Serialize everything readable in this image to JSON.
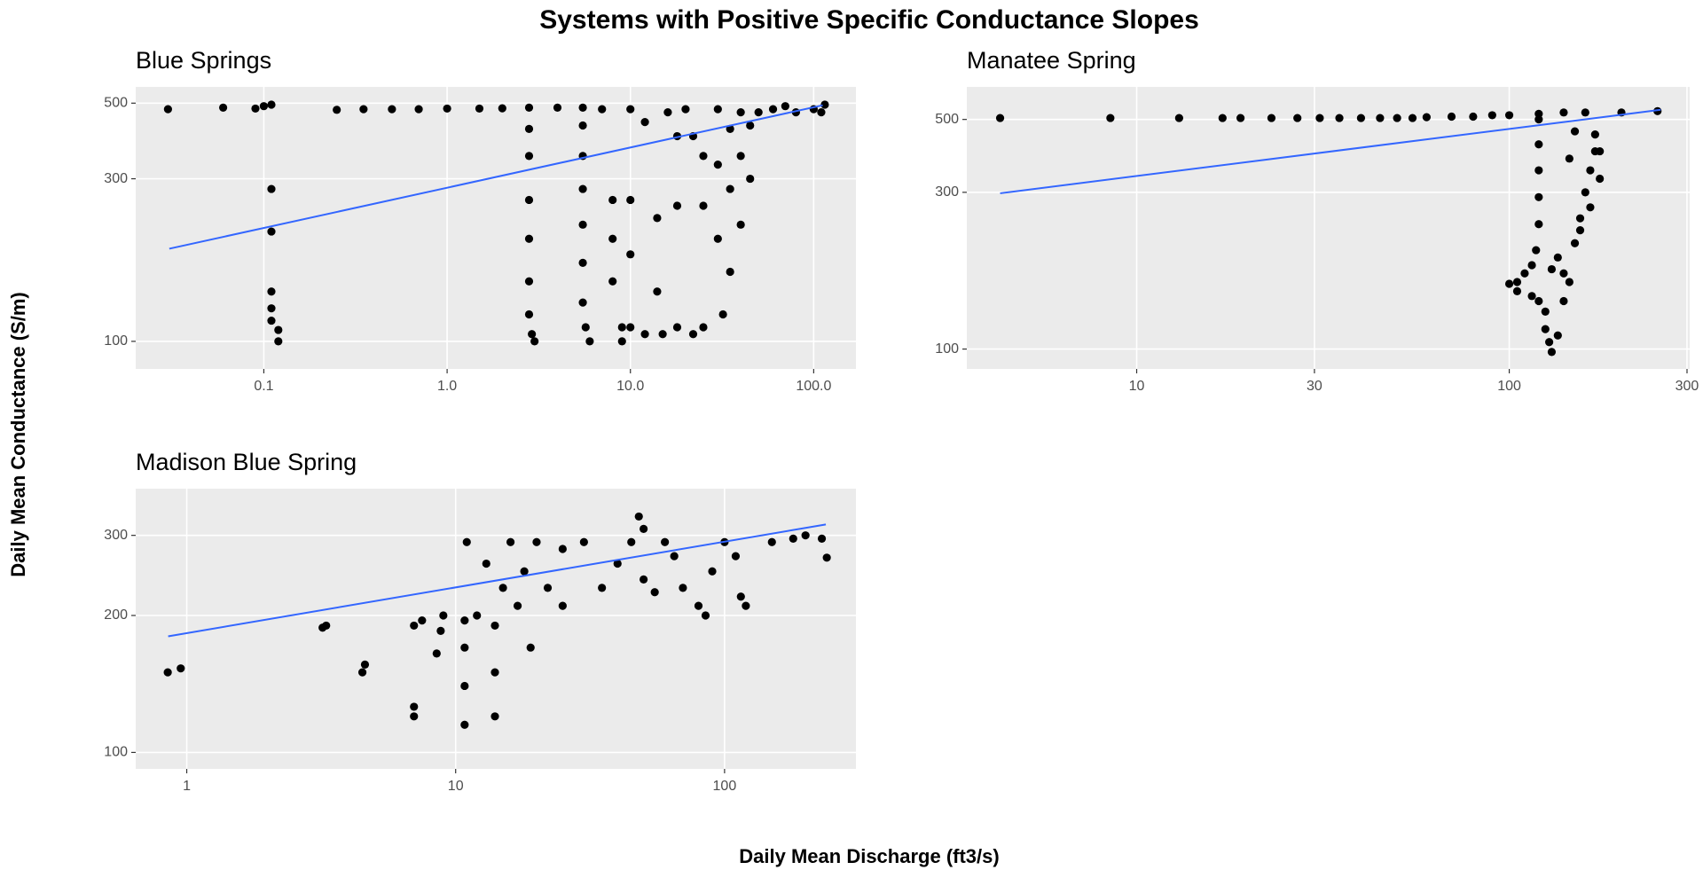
{
  "title": "Systems with Positive Specific Conductance Slopes",
  "x_label": "Daily Mean Discharge (ft3/s)",
  "y_label": "Daily Mean Conductance (S/m)",
  "chart_data": [
    {
      "type": "scatter",
      "title": "Blue Springs",
      "color": "#000000",
      "log_x": true,
      "log_y": true,
      "grid": true,
      "xlim": [
        0.02,
        170
      ],
      "ylim": [
        83,
        558
      ],
      "xticks": [
        0.1,
        {
          "value": 1,
          "label": "1.0"
        },
        {
          "value": 10,
          "label": "10.0"
        },
        {
          "value": 100,
          "label": "100.0"
        }
      ],
      "yticks": [
        100,
        300,
        500
      ],
      "x": [
        0.03,
        0.06,
        0.09,
        0.1,
        0.11,
        0.11,
        0.11,
        0.11,
        0.11,
        0.11,
        0.12,
        0.12,
        0.25,
        0.35,
        0.5,
        0.7,
        1,
        1.5,
        2,
        2.8,
        2.8,
        2.8,
        2.8,
        2.8,
        2.8,
        2.8,
        2.9,
        3,
        4,
        5.5,
        5.5,
        5.5,
        5.5,
        5.5,
        5.5,
        5.5,
        5.7,
        6,
        7,
        8,
        8,
        8,
        9,
        9,
        10,
        10,
        10,
        10,
        12,
        12,
        14,
        14,
        15,
        16,
        18,
        18,
        18,
        20,
        22,
        22,
        25,
        25,
        25,
        30,
        30,
        30,
        32,
        35,
        35,
        35,
        40,
        40,
        40,
        45,
        45,
        50,
        60,
        70,
        80,
        100,
        110,
        115
      ],
      "y": [
        480,
        485,
        482,
        490,
        495,
        280,
        210,
        140,
        125,
        115,
        108,
        100,
        478,
        480,
        480,
        480,
        482,
        482,
        483,
        485,
        420,
        350,
        260,
        200,
        150,
        120,
        105,
        100,
        485,
        485,
        430,
        350,
        280,
        220,
        170,
        130,
        110,
        100,
        480,
        260,
        200,
        150,
        110,
        100,
        480,
        260,
        180,
        110,
        105,
        440,
        230,
        140,
        105,
        470,
        400,
        250,
        110,
        480,
        400,
        105,
        350,
        250,
        110,
        480,
        330,
        200,
        120,
        420,
        280,
        160,
        470,
        350,
        220,
        430,
        300,
        470,
        480,
        490,
        470,
        480,
        470,
        495
      ],
      "fit": {
        "color": "#3366FF",
        "x": [
          0.0305,
          112
        ],
        "y": [
          187,
          493
        ]
      }
    },
    {
      "type": "scatter",
      "title": "Manatee Spring",
      "color": "#000000",
      "log_x": true,
      "log_y": true,
      "grid": true,
      "xlim": [
        3.5,
        305
      ],
      "ylim": [
        87,
        628
      ],
      "xticks": [
        10,
        30,
        100,
        300
      ],
      "yticks": [
        100,
        300,
        500
      ],
      "x": [
        4.3,
        8.5,
        13,
        17,
        19,
        23,
        27,
        31,
        35,
        40,
        45,
        50,
        55,
        60,
        70,
        80,
        90,
        100,
        120,
        140,
        160,
        200,
        250,
        120,
        120,
        120,
        120,
        120,
        118,
        115,
        110,
        105,
        100,
        105,
        115,
        120,
        125,
        125,
        128,
        130,
        135,
        140,
        140,
        135,
        130,
        145,
        150,
        155,
        160,
        165,
        170,
        170,
        175,
        175,
        165,
        155,
        150,
        145
      ],
      "y": [
        505,
        505,
        505,
        505,
        505,
        505,
        505,
        505,
        505,
        505,
        505,
        505,
        505,
        508,
        510,
        510,
        515,
        515,
        520,
        525,
        525,
        525,
        530,
        500,
        420,
        350,
        290,
        240,
        200,
        180,
        170,
        160,
        158,
        150,
        145,
        140,
        130,
        115,
        105,
        98,
        110,
        140,
        170,
        190,
        175,
        160,
        210,
        250,
        300,
        350,
        400,
        450,
        400,
        330,
        270,
        230,
        460,
        380
      ],
      "fit": {
        "color": "#3366FF",
        "x": [
          4.3,
          255
        ],
        "y": [
          298,
          535
        ]
      }
    },
    {
      "type": "scatter",
      "title": "Madison Blue Spring",
      "color": "#000000",
      "log_x": true,
      "log_y": true,
      "grid": true,
      "xlim": [
        0.646,
        308
      ],
      "ylim": [
        92,
        380
      ],
      "xticks": [
        1,
        10,
        100
      ],
      "yticks": [
        100,
        200,
        300
      ],
      "x": [
        0.85,
        0.95,
        3.2,
        3.3,
        4.5,
        4.6,
        7,
        7,
        7,
        7.5,
        8.5,
        8.8,
        9,
        10.8,
        10.8,
        10.8,
        10.8,
        11,
        12,
        13,
        14,
        14,
        14,
        15,
        16,
        17,
        18,
        19,
        20,
        22,
        25,
        25,
        30,
        35,
        40,
        45,
        48,
        50,
        50,
        55,
        60,
        65,
        70,
        80,
        85,
        90,
        100,
        110,
        115,
        120,
        150,
        180,
        200,
        230,
        240
      ],
      "y": [
        150,
        153,
        188,
        190,
        150,
        156,
        120,
        126,
        190,
        195,
        165,
        185,
        200,
        115,
        140,
        170,
        195,
        290,
        200,
        260,
        120,
        150,
        190,
        230,
        290,
        210,
        250,
        170,
        290,
        230,
        210,
        280,
        290,
        230,
        260,
        290,
        330,
        310,
        240,
        225,
        290,
        270,
        230,
        210,
        200,
        250,
        290,
        270,
        220,
        210,
        290,
        295,
        300,
        295,
        268
      ],
      "fit": {
        "color": "#3366FF",
        "x": [
          0.853,
          238
        ],
        "y": [
          180,
          317
        ]
      }
    }
  ]
}
